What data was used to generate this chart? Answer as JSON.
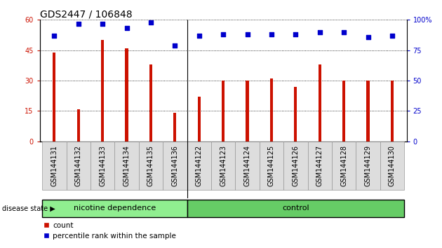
{
  "title": "GDS2447 / 106848",
  "samples": [
    "GSM144131",
    "GSM144132",
    "GSM144133",
    "GSM144134",
    "GSM144135",
    "GSM144136",
    "GSM144122",
    "GSM144123",
    "GSM144124",
    "GSM144125",
    "GSM144126",
    "GSM144127",
    "GSM144128",
    "GSM144129",
    "GSM144130"
  ],
  "bar_heights": [
    44,
    16,
    50,
    46,
    38,
    14,
    22,
    30,
    30,
    31,
    27,
    38,
    30,
    30,
    30
  ],
  "percentiles": [
    87,
    97,
    97,
    93,
    98,
    79,
    87,
    88,
    88,
    88,
    88,
    90,
    90,
    86,
    87
  ],
  "bar_color": "#cc1100",
  "dot_color": "#0000cc",
  "ylim_left": [
    0,
    60
  ],
  "ylim_right": [
    0,
    100
  ],
  "yticks_left": [
    0,
    15,
    30,
    45,
    60
  ],
  "yticks_right": [
    0,
    25,
    50,
    75,
    100
  ],
  "ytick_labels_left": [
    "0",
    "15",
    "30",
    "45",
    "60"
  ],
  "ytick_labels_right": [
    "0",
    "25",
    "50",
    "75",
    "100%"
  ],
  "group1_label": "nicotine dependence",
  "group2_label": "control",
  "group1_count": 6,
  "group2_count": 9,
  "disease_label": "disease state",
  "legend_count_label": "count",
  "legend_percentile_label": "percentile rank within the sample",
  "group1_color": "#90ee90",
  "group2_color": "#66cc66",
  "plot_bg": "#ffffff",
  "title_fontsize": 10,
  "tick_label_fontsize": 7,
  "label_fontsize": 8,
  "bar_width": 0.12
}
